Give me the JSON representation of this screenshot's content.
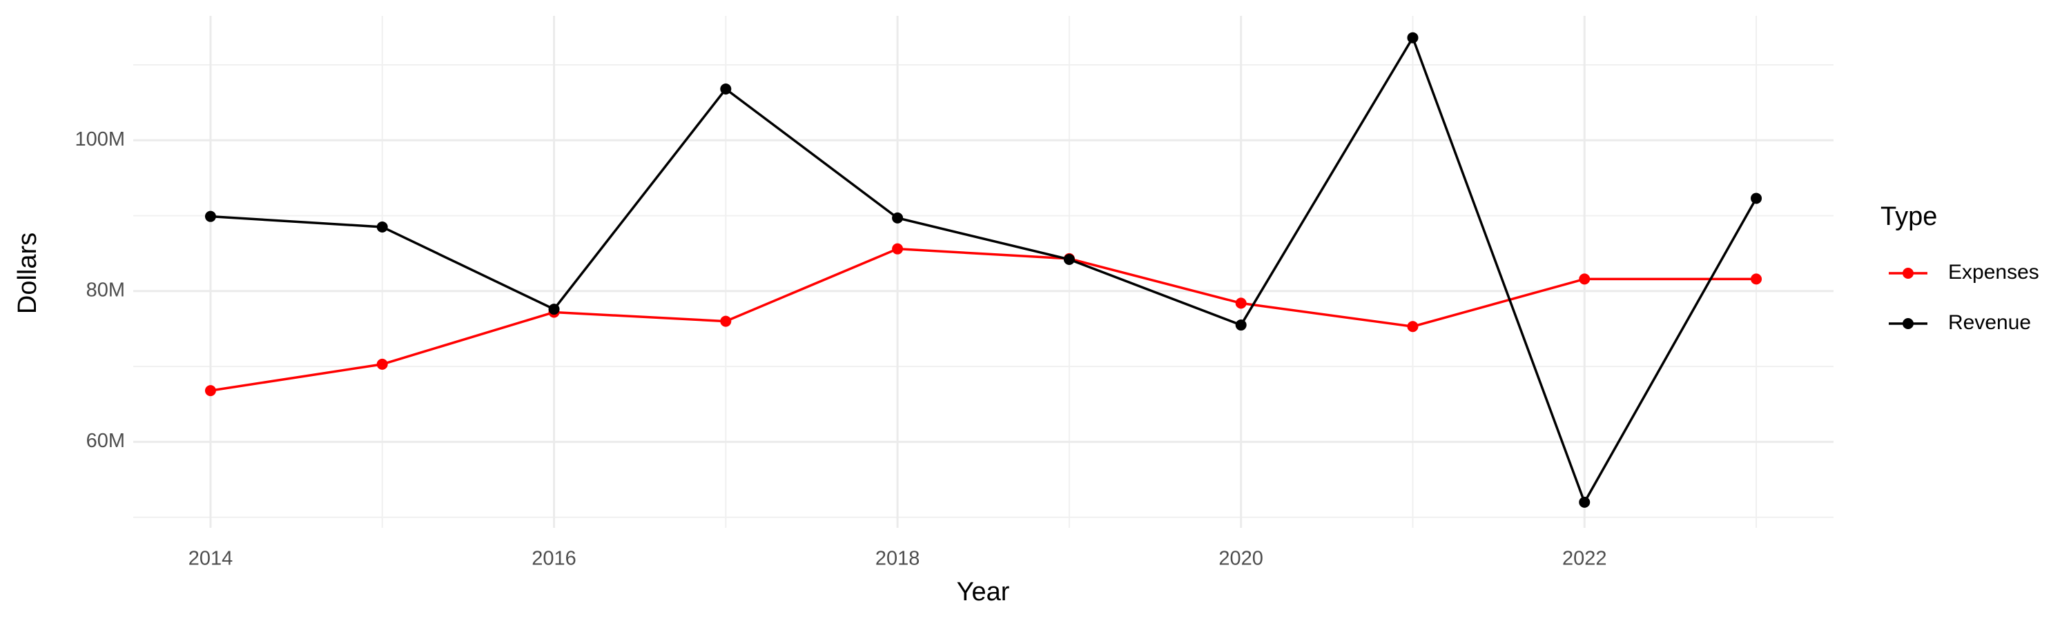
{
  "chart_data": {
    "type": "line",
    "x_title": "Year",
    "y_title": "Dollars",
    "legend_title": "Type",
    "x": [
      2014,
      2015,
      2016,
      2017,
      2018,
      2019,
      2020,
      2021,
      2022,
      2023
    ],
    "series": [
      {
        "name": "Expenses",
        "color": "#ff0000",
        "values": [
          66800000,
          70300000,
          77200000,
          76000000,
          85600000,
          84300000,
          78400000,
          75300000,
          81600000,
          81600000
        ]
      },
      {
        "name": "Revenue",
        "color": "#000000",
        "values": [
          89900000,
          88500000,
          77600000,
          106800000,
          89700000,
          84200000,
          75500000,
          113600000,
          52000000,
          92300000
        ]
      }
    ],
    "xlim": [
      2013.55,
      2023.45
    ],
    "xticks": [
      2014,
      2016,
      2018,
      2020,
      2022
    ],
    "x_minor_ticks": [
      2015,
      2017,
      2019,
      2021,
      2023
    ],
    "ylim": [
      48600000,
      116500000
    ],
    "yticks": [
      {
        "value": 60000000,
        "label": "60M"
      },
      {
        "value": 80000000,
        "label": "80M"
      },
      {
        "value": 100000000,
        "label": "100M"
      }
    ],
    "y_minor_ticks": [
      50000000,
      70000000,
      90000000,
      110000000
    ],
    "grid": true,
    "legend_position": "right"
  }
}
